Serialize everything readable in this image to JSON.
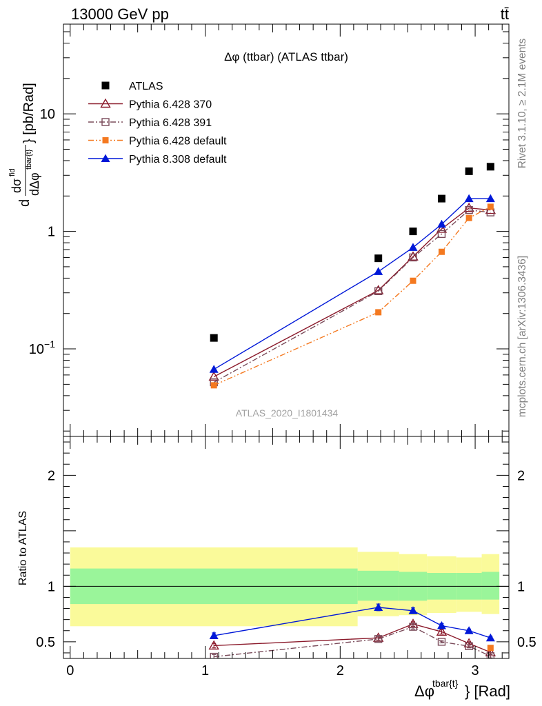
{
  "header": {
    "left": "13000 GeV pp",
    "right": "tt̄"
  },
  "side_labels": {
    "rivet": "Rivet 3.1.10, ≥ 2.1M events",
    "mcplots": "mcplots.cern.ch [arXiv:1306.3436]"
  },
  "chart_data": [
    {
      "type": "scatter",
      "title": "Δφ (ttbar) (ATLAS ttbar)",
      "watermark": "ATLAS_2020_I1801434",
      "ylabel": "d dσ^fid / dΔφ^tbar{t} [pb/Rad]",
      "ylabel_parts": {
        "pre": "d",
        "num": "dσ",
        "num_sup": "fid",
        "den": "dΔφ",
        "den_sup": "tbar{t}",
        "unit": "} [pb/Rad]"
      },
      "yscale": "log",
      "xlim": [
        -0.05,
        3.25
      ],
      "ylim": [
        0.018,
        58
      ],
      "yticks": [
        {
          "value": 0.1,
          "label": "10",
          "sup": "−1"
        },
        {
          "value": 1,
          "label": "1",
          "sup": ""
        },
        {
          "value": 10,
          "label": "10",
          "sup": ""
        }
      ],
      "legend_position": "top-left",
      "series": [
        {
          "name": "ATLAS",
          "color": "#000000",
          "marker": "square-filled",
          "line": "none",
          "x": [
            1.0647,
            2.2829,
            2.5399,
            2.7518,
            2.9544,
            3.1138
          ],
          "y": [
            0.124,
            0.59,
            1.0,
            1.9,
            3.25,
            3.55
          ]
        },
        {
          "name": "Pythia 6.428 370",
          "color": "#8b1a2b",
          "marker": "triangle-open",
          "line": "solid",
          "x": [
            1.0647,
            2.2829,
            2.5399,
            2.7518,
            2.9544,
            3.1138
          ],
          "y": [
            0.058,
            0.315,
            0.61,
            1.05,
            1.58,
            1.52
          ]
        },
        {
          "name": "Pythia 6.428 391",
          "color": "#7a4b5a",
          "marker": "square-open",
          "line": "dashdot",
          "x": [
            1.0647,
            2.2829,
            2.5399,
            2.7518,
            2.9544,
            3.1138
          ],
          "y": [
            0.052,
            0.31,
            0.6,
            0.95,
            1.52,
            1.45
          ]
        },
        {
          "name": "Pythia 6.428 default",
          "color": "#f47920",
          "marker": "square-filled-small",
          "line": "dashdotdot",
          "x": [
            1.0647,
            2.2829,
            2.5399,
            2.7518,
            2.9544,
            3.1138
          ],
          "y": [
            0.049,
            0.205,
            0.38,
            0.67,
            1.3,
            1.62
          ]
        },
        {
          "name": "Pythia 8.308 default",
          "color": "#0018d8",
          "marker": "triangle-filled",
          "line": "solid",
          "x": [
            1.0647,
            2.2829,
            2.5399,
            2.7518,
            2.9544,
            3.1138
          ],
          "y": [
            0.067,
            0.455,
            0.73,
            1.15,
            1.9,
            1.9
          ]
        }
      ]
    },
    {
      "type": "scatter",
      "ylabel": "Ratio to ATLAS",
      "xlabel": "Δφ",
      "xlabel_sup": "tbar{t}",
      "xlabel_unit": "} [Rad]",
      "xlim": [
        -0.05,
        3.25
      ],
      "ylim": [
        0.35,
        2.35
      ],
      "xticks": [
        0,
        1,
        2,
        3
      ],
      "yticks": [
        0.5,
        1,
        2
      ],
      "bands": {
        "edges": [
          0,
          2.1294,
          2.4364,
          2.6434,
          2.8602,
          3.0486,
          3.1791
        ],
        "yellow_lo": [
          0.64,
          0.73,
          0.74,
          0.76,
          0.77,
          0.75
        ],
        "yellow_hi": [
          1.35,
          1.31,
          1.29,
          1.27,
          1.26,
          1.29
        ],
        "green_lo": [
          0.84,
          0.87,
          0.87,
          0.88,
          0.88,
          0.88
        ],
        "green_hi": [
          1.16,
          1.14,
          1.13,
          1.12,
          1.12,
          1.13
        ],
        "yellow_color": "#fafa9a",
        "green_color": "#9af59a"
      },
      "series": [
        {
          "name": "Pythia 6.428 370",
          "color": "#8b1a2b",
          "marker": "triangle-open",
          "line": "solid",
          "x": [
            1.0647,
            2.2829,
            2.5399,
            2.7518,
            2.9544,
            3.1138
          ],
          "y": [
            0.465,
            0.535,
            0.66,
            0.59,
            0.485,
            0.405
          ],
          "err": [
            0.02,
            0.02,
            0.02,
            0.02,
            0.015,
            0.015
          ]
        },
        {
          "name": "Pythia 6.428 391",
          "color": "#7a4b5a",
          "marker": "square-open",
          "line": "dashdot",
          "x": [
            1.0647,
            2.2829,
            2.5399,
            2.7518,
            2.9544,
            3.1138
          ],
          "y": [
            0.365,
            0.525,
            0.635,
            0.5,
            0.46,
            0.37
          ],
          "err": [
            0.02,
            0.02,
            0.02,
            0.01,
            0.015,
            0.015
          ]
        },
        {
          "name": "Pythia 6.428 default",
          "color": "#f47920",
          "marker": "square-filled-small",
          "line": "dashdotdot",
          "x": [
            3.1138
          ],
          "y": [
            0.445
          ],
          "err": [
            0.01
          ]
        },
        {
          "name": "Pythia 8.308 default",
          "color": "#0018d8",
          "marker": "triangle-filled",
          "line": "solid",
          "x": [
            1.0647,
            2.2829,
            2.5399,
            2.7518,
            2.9544,
            3.1138
          ],
          "y": [
            0.555,
            0.81,
            0.78,
            0.645,
            0.6,
            0.535
          ],
          "err": [
            0.025,
            0.03,
            0.025,
            0.02,
            0.015,
            0.015
          ]
        }
      ]
    }
  ]
}
